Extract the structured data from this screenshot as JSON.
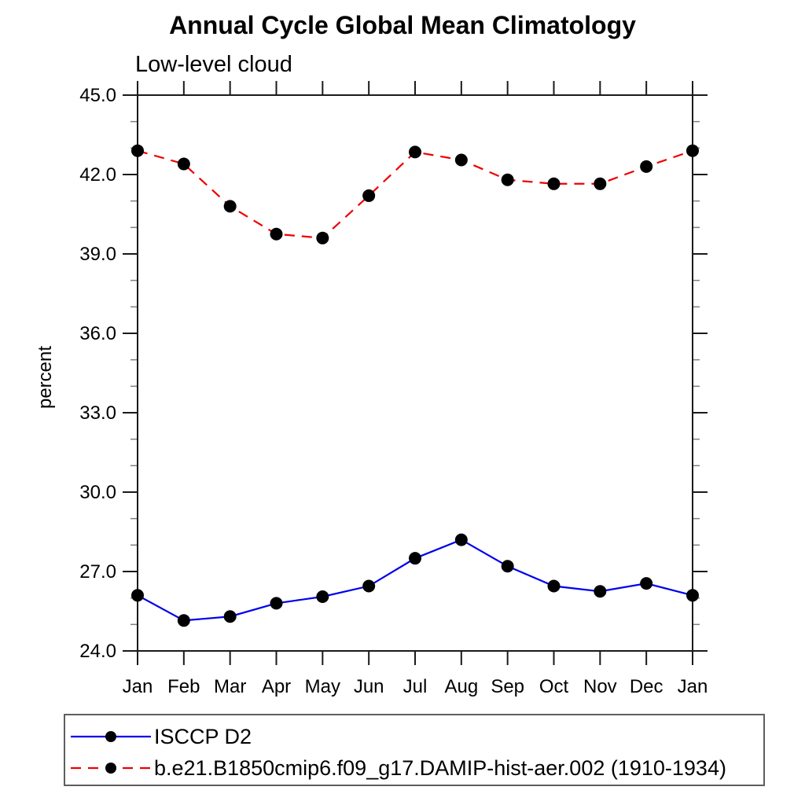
{
  "page": {
    "background": "#ffffff"
  },
  "chart_data": {
    "type": "line",
    "title": "Annual Cycle Global Mean Climatology",
    "subtitle": "Low-level cloud",
    "ylabel": "percent",
    "xlabel": "",
    "categories": [
      "Jan",
      "Feb",
      "Mar",
      "Apr",
      "May",
      "Jun",
      "Jul",
      "Aug",
      "Sep",
      "Oct",
      "Nov",
      "Dec",
      "Jan"
    ],
    "ylim": [
      24.0,
      45.0
    ],
    "ytick_major_step": 3.0,
    "ytick_minor_step": 1.0,
    "ytick_label_format": "one-decimal",
    "grid": false,
    "legend_position": "boxed-below-plot",
    "axis_color": "#1a1a1a",
    "minor_tick_color": "#808080",
    "marker": "filled-circle",
    "marker_color": "#000000",
    "series": [
      {
        "name": "ISCCP D2",
        "line_style": "solid",
        "color": "#0000ee",
        "values": [
          26.1,
          25.15,
          25.3,
          25.8,
          26.05,
          26.45,
          27.5,
          28.2,
          27.2,
          26.45,
          26.25,
          26.55,
          26.1
        ]
      },
      {
        "name": "b.e21.B1850cmip6.f09_g17.DAMIP-hist-aer.002 (1910-1934)",
        "line_style": "dashed",
        "color": "#ee0000",
        "values": [
          42.9,
          42.4,
          40.8,
          39.75,
          39.6,
          41.2,
          42.85,
          42.55,
          41.8,
          41.65,
          41.65,
          42.3,
          42.9
        ]
      }
    ]
  }
}
